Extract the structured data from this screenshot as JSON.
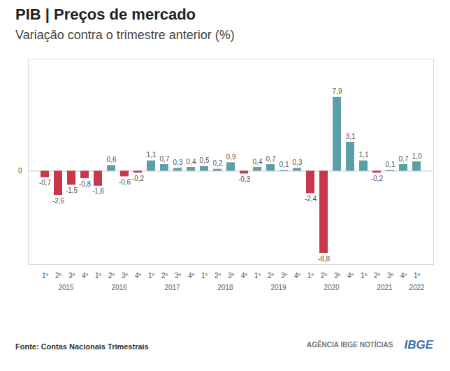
{
  "chart_data": {
    "type": "bar",
    "title": "PIB | Preços de mercado",
    "subtitle": "Variação contra o trimestre anterior (%)",
    "source": "Fonte: Contas Nacionais Trimestrais",
    "credits": [
      "AGÊNCIA IBGE NOTÍCIAS",
      "IBGE"
    ],
    "categories": [
      "1º",
      "2º",
      "3º",
      "4º",
      "1º",
      "2º",
      "3º",
      "4º",
      "1º",
      "2º",
      "3º",
      "4º",
      "1º",
      "2º",
      "3º",
      "4º",
      "1º",
      "2º",
      "3º",
      "4º",
      "1º",
      "2º",
      "3º",
      "4º",
      "1º",
      "2º",
      "3º",
      "4º",
      "1º"
    ],
    "groups": [
      "2015",
      "2015",
      "2015",
      "2015",
      "2016",
      "2016",
      "2016",
      "2016",
      "2017",
      "2017",
      "2017",
      "2017",
      "2018",
      "2018",
      "2018",
      "2018",
      "2019",
      "2019",
      "2019",
      "2019",
      "2020",
      "2020",
      "2020",
      "2020",
      "2021",
      "2021",
      "2021",
      "2021",
      "2022"
    ],
    "values": [
      -0.7,
      -2.6,
      -1.5,
      -0.8,
      -1.6,
      0.6,
      -0.6,
      -0.2,
      1.1,
      0.7,
      0.3,
      0.4,
      0.5,
      0.2,
      0.9,
      -0.3,
      0.4,
      0.7,
      0.1,
      0.3,
      -2.4,
      -8.8,
      7.9,
      3.1,
      1.1,
      -0.2,
      0.1,
      0.7,
      1.0
    ],
    "value_labels": [
      "-0,7",
      "-2,6",
      "-1,5",
      "-0,8",
      "-1,6",
      "0,6",
      "-0,6",
      "-0,2",
      "1,1",
      "0,7",
      "0,3",
      "0,4",
      "0,5",
      "0,2",
      "0,9",
      "-0,3",
      "0,4",
      "0,7",
      "0,1",
      "0,3",
      "-2,4",
      "-8,8",
      "7,9",
      "3,1",
      "1,1",
      "-0,2",
      "0,1",
      "0,7",
      "1,0"
    ],
    "colors": [
      "#c8384a",
      "#c8384a",
      "#c8384a",
      "#c8384a",
      "#c8384a",
      "#5b9fa8",
      "#c8384a",
      "#c8384a",
      "#5b9fa8",
      "#5b9fa8",
      "#5b9fa8",
      "#5b9fa8",
      "#5b9fa8",
      "#5b9fa8",
      "#5b9fa8",
      "#c8384a",
      "#5b9fa8",
      "#5b9fa8",
      "#5b9fa8",
      "#5b9fa8",
      "#c8384a",
      "#c8384a",
      "#5b9fa8",
      "#5b9fa8",
      "#5b9fa8",
      "#c8384a",
      "#5b9fa8",
      "#5b9fa8",
      "#5b9fa8"
    ],
    "ylim": [
      -10,
      12
    ],
    "yticks": [
      0
    ],
    "grid": true,
    "data_labels": true
  }
}
